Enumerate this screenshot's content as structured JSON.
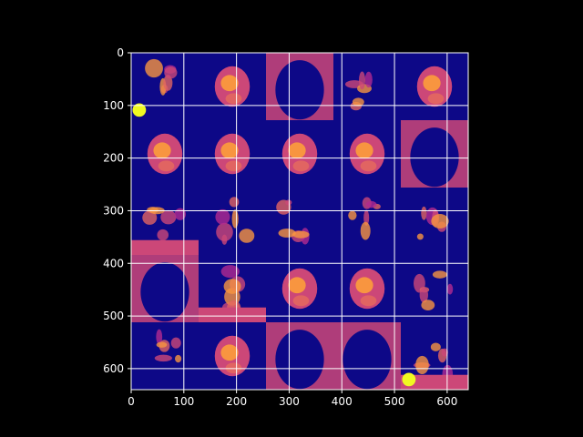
{
  "chart_data": {
    "type": "heatmap",
    "title": "",
    "xlabel": "",
    "ylabel": "",
    "xlim": [
      0,
      640
    ],
    "ylim": [
      640,
      0
    ],
    "y_axis_inverted": true,
    "grid": true,
    "colormap": "plasma",
    "layout": "5x5 montage of grayscale slices mapped to plasma colormap",
    "tile_size": 128,
    "grid_shape": [
      5,
      5
    ],
    "x_ticks": [
      0,
      100,
      200,
      300,
      400,
      500,
      600
    ],
    "y_ticks": [
      0,
      100,
      200,
      300,
      400,
      500,
      600
    ],
    "x_tick_labels": [
      "0",
      "100",
      "200",
      "300",
      "400",
      "500",
      "600"
    ],
    "y_tick_labels": [
      "0",
      "100",
      "200",
      "300",
      "400",
      "500",
      "600"
    ],
    "tiles": [
      [
        {
          "content": "sparse blobs, bright low-left"
        },
        {
          "content": "brain slice"
        },
        {
          "content": "head outline top"
        },
        {
          "content": "sparse blob"
        },
        {
          "content": "brain slice with edge"
        }
      ],
      [
        {
          "content": "brain slice"
        },
        {
          "content": "brain slice"
        },
        {
          "content": "brain slice"
        },
        {
          "content": "brain slice"
        },
        {
          "content": "head outline"
        }
      ],
      [
        {
          "content": "sparse, bright bottom"
        },
        {
          "content": "sparse blob"
        },
        {
          "content": "sparse blob"
        },
        {
          "content": "sparse blob"
        },
        {
          "content": "sparse blob"
        }
      ],
      [
        {
          "content": "head outline"
        },
        {
          "content": "sparse, bright bottom"
        },
        {
          "content": "brain slice"
        },
        {
          "content": "brain slice"
        },
        {
          "content": "sparse"
        }
      ],
      [
        {
          "content": "sparse blobs"
        },
        {
          "content": "brain slice"
        },
        {
          "content": "head outline"
        },
        {
          "content": "head outline"
        },
        {
          "content": "bright bottom-left"
        }
      ]
    ]
  },
  "colors": {
    "background": "#000000",
    "image_bg": "#0d0887",
    "grid": "#ffffff",
    "text": "#ffffff",
    "plasma_mid": "#cc4778",
    "plasma_high": "#f89540",
    "plasma_max": "#f0f921"
  }
}
